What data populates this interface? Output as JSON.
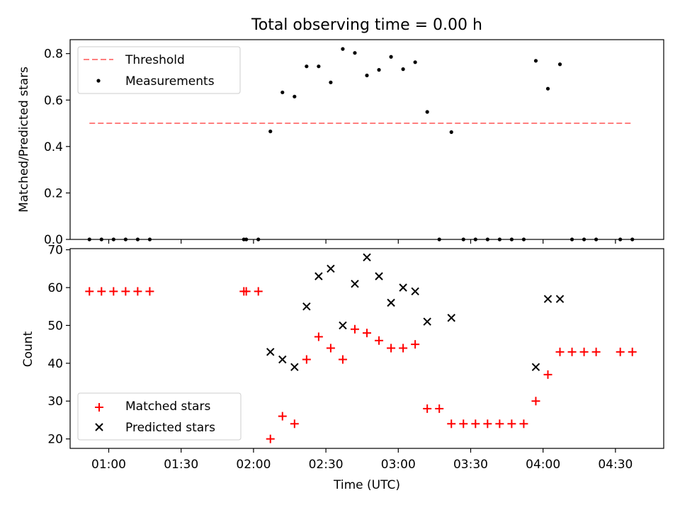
{
  "title": "Total observing time = 0.00 h",
  "colors": {
    "threshold": "#ff7f7f",
    "measurements": "#000000",
    "matched": "#ff0000",
    "predicted": "#000000"
  },
  "chart_data": [
    {
      "type": "scatter",
      "ylabel": "Matched/Predicted stars",
      "ylim": [
        0,
        0.86
      ],
      "yticks": [
        "0.0",
        "0.2",
        "0.4",
        "0.6",
        "0.8"
      ],
      "xlim": [
        "00:44",
        "04:50"
      ],
      "legend": {
        "position": "top-left",
        "entries": [
          "Threshold",
          "Measurements"
        ]
      },
      "threshold": {
        "name": "Threshold",
        "value": 0.5,
        "x": [
          "00:52",
          "04:37"
        ]
      },
      "series": [
        {
          "name": "Measurements",
          "points": [
            [
              "00:52",
              0.0
            ],
            [
              "00:57",
              0.0
            ],
            [
              "01:02",
              0.0
            ],
            [
              "01:07",
              0.0
            ],
            [
              "01:12",
              0.0
            ],
            [
              "01:17",
              0.0
            ],
            [
              "01:56",
              0.0
            ],
            [
              "01:57",
              0.0
            ],
            [
              "02:02",
              0.0
            ],
            [
              "02:07",
              0.465
            ],
            [
              "02:12",
              0.633
            ],
            [
              "02:17",
              0.615
            ],
            [
              "02:22",
              0.745
            ],
            [
              "02:27",
              0.745
            ],
            [
              "02:32",
              0.676
            ],
            [
              "02:37",
              0.82
            ],
            [
              "02:42",
              0.803
            ],
            [
              "02:47",
              0.706
            ],
            [
              "02:52",
              0.73
            ],
            [
              "02:57",
              0.786
            ],
            [
              "03:02",
              0.733
            ],
            [
              "03:07",
              0.763
            ],
            [
              "03:12",
              0.549
            ],
            [
              "03:17",
              0.0
            ],
            [
              "03:22",
              0.462
            ],
            [
              "03:27",
              0.0
            ],
            [
              "03:32",
              0.0
            ],
            [
              "03:37",
              0.0
            ],
            [
              "03:42",
              0.0
            ],
            [
              "03:47",
              0.0
            ],
            [
              "03:52",
              0.0
            ],
            [
              "03:57",
              0.769
            ],
            [
              "04:02",
              0.649
            ],
            [
              "04:07",
              0.754
            ],
            [
              "04:12",
              0.0
            ],
            [
              "04:17",
              0.0
            ],
            [
              "04:22",
              0.0
            ],
            [
              "04:32",
              0.0
            ],
            [
              "04:37",
              0.0
            ]
          ]
        }
      ]
    },
    {
      "type": "scatter",
      "ylabel": "Count",
      "xlabel": "Time (UTC)",
      "ylim": [
        17.5,
        70.3
      ],
      "yticks": [
        "20",
        "30",
        "40",
        "50",
        "60",
        "70"
      ],
      "xlim": [
        "00:44",
        "04:50"
      ],
      "xticks": [
        "01:00",
        "01:30",
        "02:00",
        "02:30",
        "03:00",
        "03:30",
        "04:00",
        "04:30"
      ],
      "legend": {
        "position": "bottom-left",
        "entries": [
          "Matched stars",
          "Predicted stars"
        ]
      },
      "series": [
        {
          "name": "Matched stars",
          "marker": "plus",
          "points": [
            [
              "00:52",
              59
            ],
            [
              "00:57",
              59
            ],
            [
              "01:02",
              59
            ],
            [
              "01:07",
              59
            ],
            [
              "01:12",
              59
            ],
            [
              "01:17",
              59
            ],
            [
              "01:56",
              59
            ],
            [
              "01:57",
              59
            ],
            [
              "02:02",
              59
            ],
            [
              "02:07",
              20
            ],
            [
              "02:12",
              26
            ],
            [
              "02:17",
              24
            ],
            [
              "02:22",
              41
            ],
            [
              "02:27",
              47
            ],
            [
              "02:32",
              44
            ],
            [
              "02:37",
              41
            ],
            [
              "02:42",
              49
            ],
            [
              "02:47",
              48
            ],
            [
              "02:52",
              46
            ],
            [
              "02:57",
              44
            ],
            [
              "03:02",
              44
            ],
            [
              "03:07",
              45
            ],
            [
              "03:12",
              28
            ],
            [
              "03:17",
              28
            ],
            [
              "03:22",
              24
            ],
            [
              "03:27",
              24
            ],
            [
              "03:32",
              24
            ],
            [
              "03:37",
              24
            ],
            [
              "03:42",
              24
            ],
            [
              "03:47",
              24
            ],
            [
              "03:52",
              24
            ],
            [
              "03:57",
              30
            ],
            [
              "04:02",
              37
            ],
            [
              "04:07",
              43
            ],
            [
              "04:12",
              43
            ],
            [
              "04:17",
              43
            ],
            [
              "04:22",
              43
            ],
            [
              "04:32",
              43
            ],
            [
              "04:37",
              43
            ]
          ]
        },
        {
          "name": "Predicted stars",
          "marker": "x",
          "points": [
            [
              "02:07",
              43
            ],
            [
              "02:12",
              41
            ],
            [
              "02:17",
              39
            ],
            [
              "02:22",
              55
            ],
            [
              "02:27",
              63
            ],
            [
              "02:32",
              65
            ],
            [
              "02:37",
              50
            ],
            [
              "02:42",
              61
            ],
            [
              "02:47",
              68
            ],
            [
              "02:52",
              63
            ],
            [
              "02:57",
              56
            ],
            [
              "03:02",
              60
            ],
            [
              "03:07",
              59
            ],
            [
              "03:12",
              51
            ],
            [
              "03:22",
              52
            ],
            [
              "03:57",
              39
            ],
            [
              "04:02",
              57
            ],
            [
              "04:07",
              57
            ]
          ]
        }
      ]
    }
  ]
}
